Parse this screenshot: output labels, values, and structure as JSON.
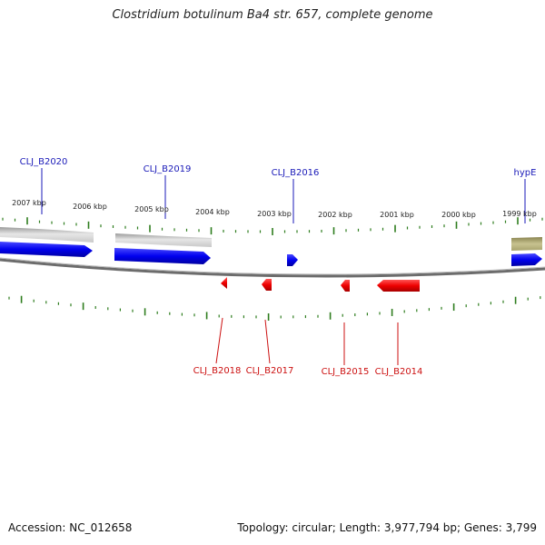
{
  "title": "Clostridium botulinum Ba4 str. 657, complete genome",
  "colors": {
    "forward_gene": "#1010ee",
    "reverse_gene": "#ee1111",
    "pseudo_gene": "#b5b07a",
    "tick": "#2e7d1e",
    "backbone": "#777777",
    "contig": "#b8b8b8"
  },
  "footer": {
    "accession": "Accession: NC_012658",
    "summary": "Topology: circular; Length: 3,977,794 bp; Genes: 3,799"
  },
  "kbp_labels": [
    "2007 kbp",
    "2006 kbp",
    "2005 kbp",
    "2004 kbp",
    "2003 kbp",
    "2002 kbp",
    "2001 kbp",
    "2000 kbp",
    "1999 kbp"
  ],
  "forward_genes": [
    {
      "label": "CLJ_B2020"
    },
    {
      "label": "CLJ_B2019"
    },
    {
      "label": "CLJ_B2016"
    },
    {
      "label": "hypE"
    }
  ],
  "reverse_genes": [
    {
      "label": "CLJ_B2018"
    },
    {
      "label": "CLJ_B2017"
    },
    {
      "label": "CLJ_B2015"
    },
    {
      "label": "CLJ_B2014"
    }
  ]
}
